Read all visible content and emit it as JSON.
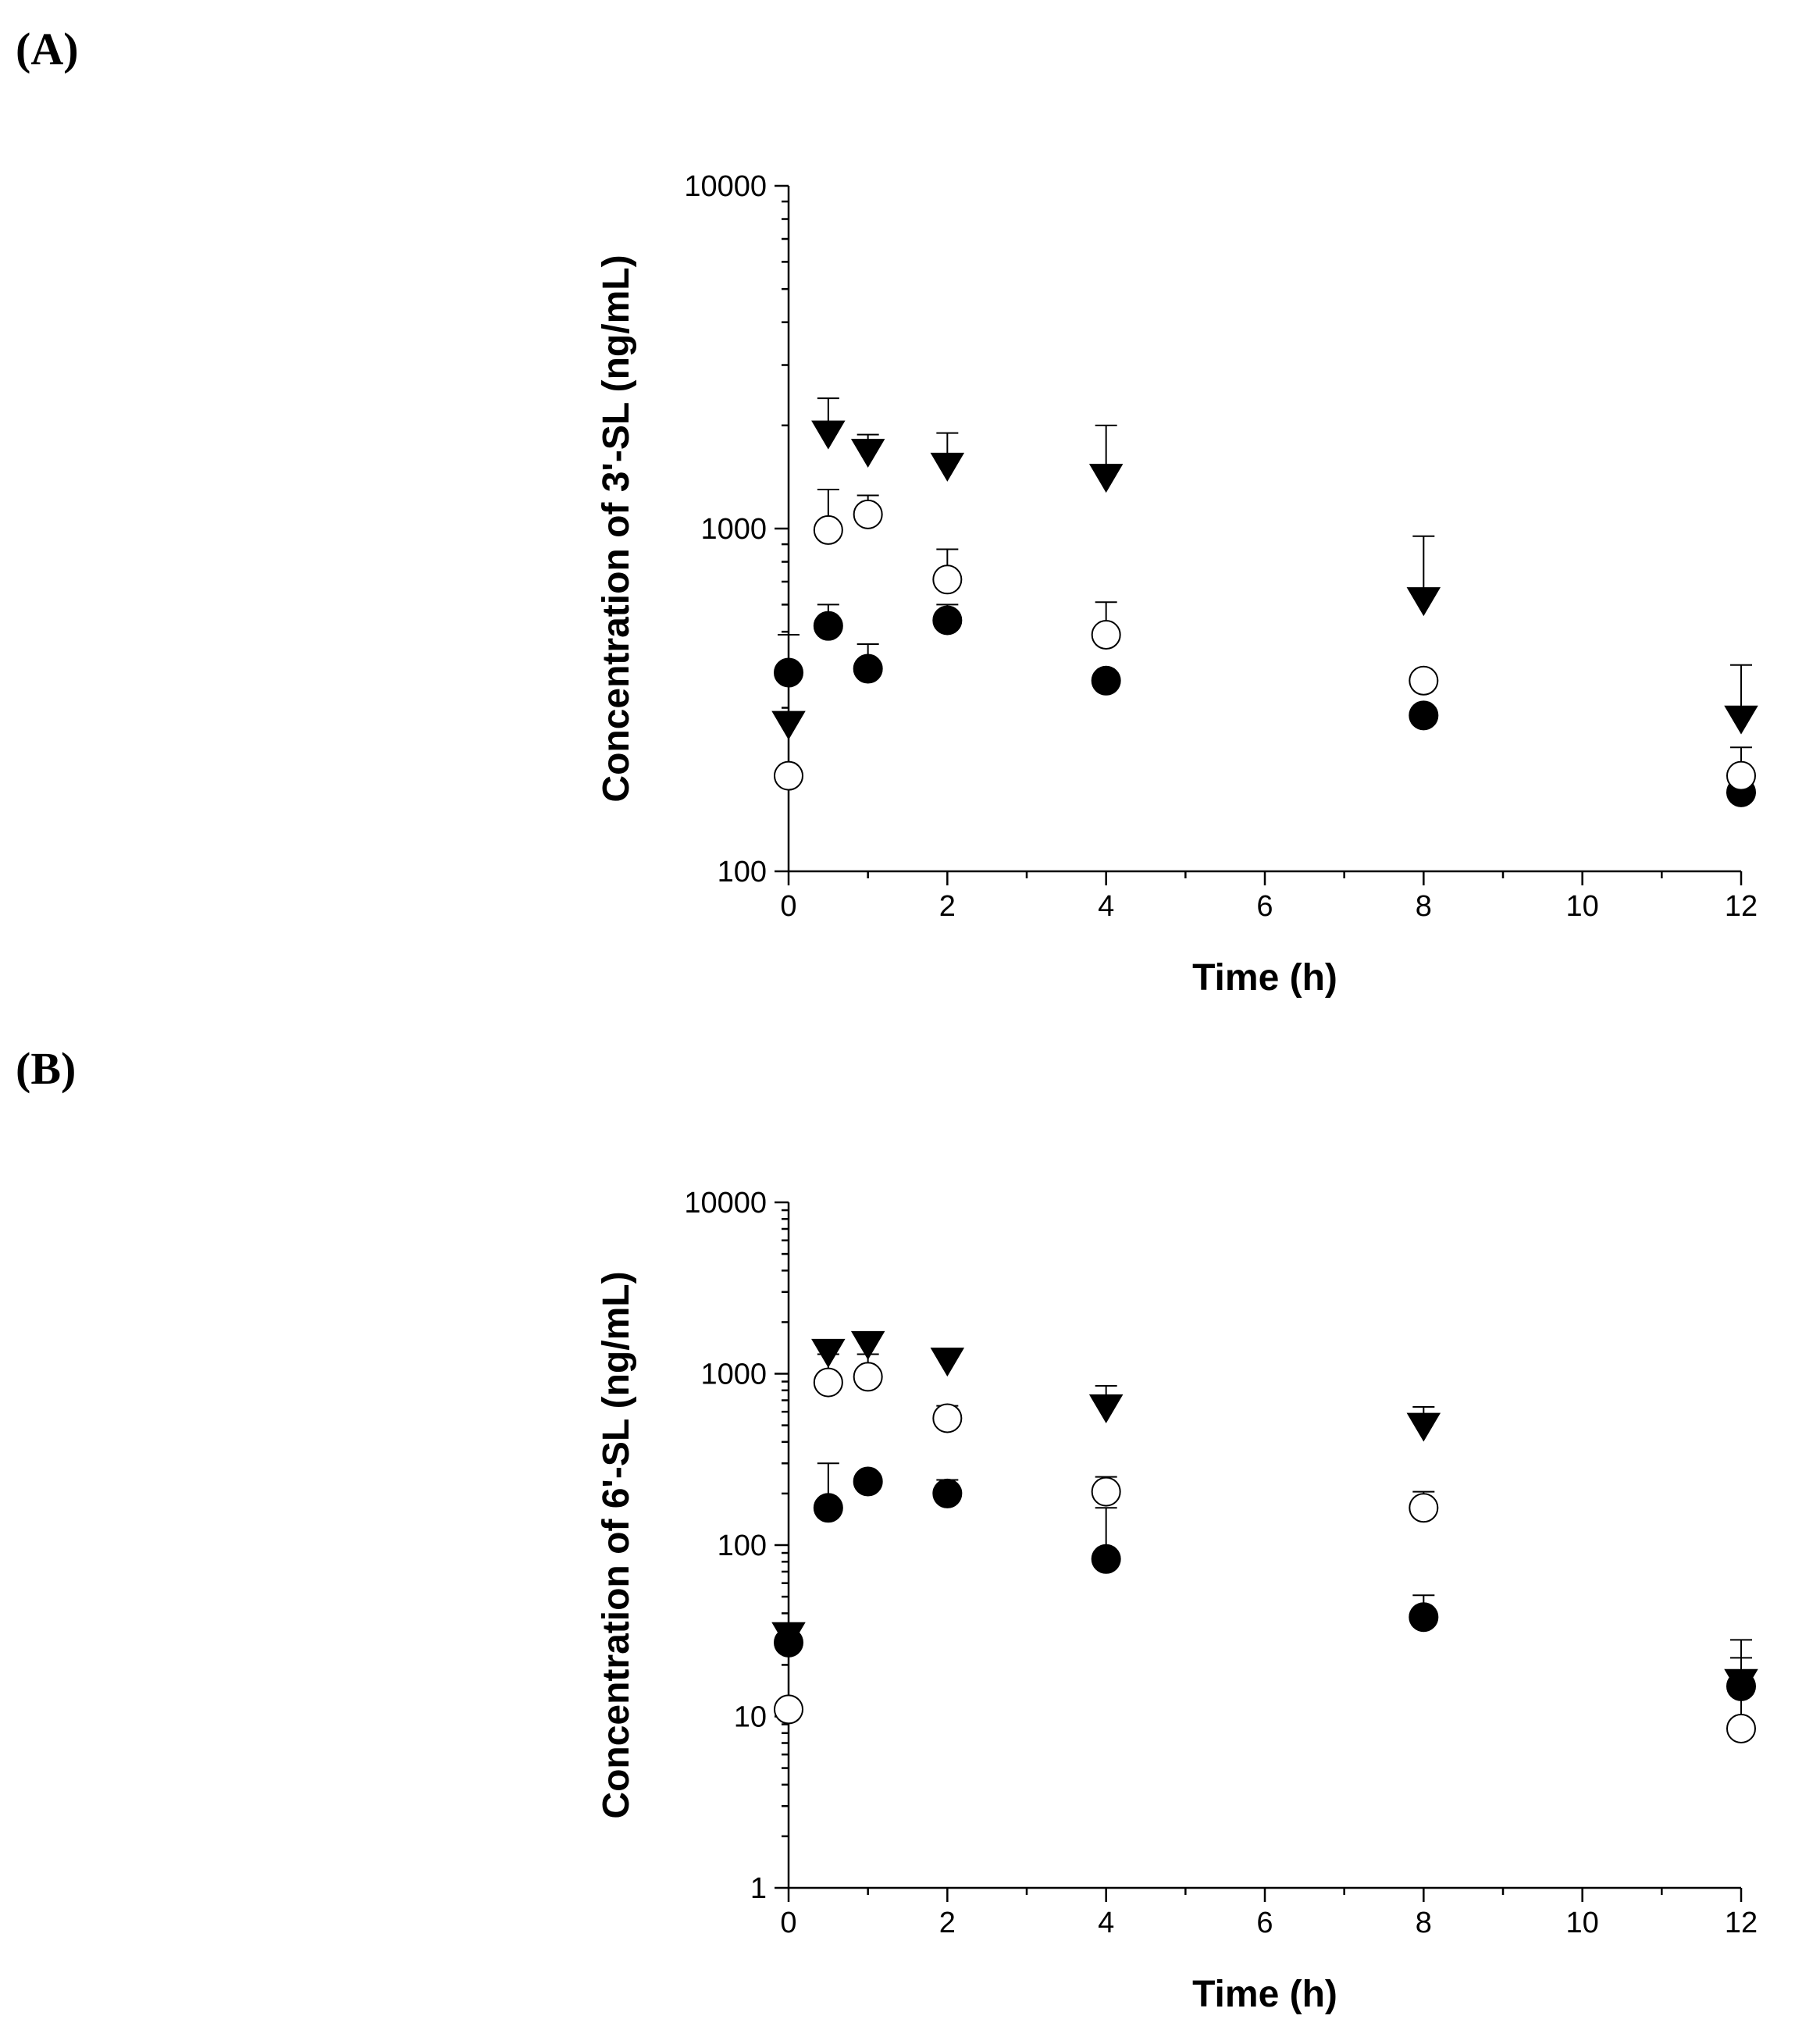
{
  "panels": [
    {
      "label": "(A)"
    },
    {
      "label": "(B)"
    }
  ],
  "chart_data": [
    {
      "type": "scatter",
      "panel": "(A)",
      "title": "",
      "xlabel": "Time (h)",
      "ylabel": "Concentration of 3'-SL (ng/mL)",
      "xlim": [
        0,
        12
      ],
      "ylim": [
        100,
        10000
      ],
      "yscale": "log",
      "xticks": [
        0,
        2,
        4,
        6,
        8,
        10,
        12
      ],
      "yticks": [
        100,
        1000,
        10000
      ],
      "grid": false,
      "legend": "none",
      "series": [
        {
          "name": "filled-circle",
          "marker": "filled-circle",
          "x": [
            0,
            0.5,
            1,
            2,
            4,
            8,
            12
          ],
          "y": [
            380,
            520,
            390,
            540,
            360,
            285,
            170
          ],
          "err": [
            0,
            600,
            460,
            600,
            0,
            0,
            0
          ]
        },
        {
          "name": "open-circle",
          "marker": "open-circle",
          "x": [
            0,
            0.5,
            1,
            2,
            4,
            8,
            12
          ],
          "y": [
            190,
            990,
            1100,
            710,
            490,
            360,
            190
          ],
          "err": [
            0,
            1300,
            1250,
            870,
            610,
            0,
            230
          ]
        },
        {
          "name": "filled-triangle",
          "marker": "filled-triangle-down",
          "x": [
            0,
            0.5,
            1,
            2,
            4,
            8,
            12
          ],
          "y": [
            270,
            1900,
            1680,
            1530,
            1420,
            620,
            280
          ],
          "err": [
            490,
            2400,
            1880,
            1900,
            2000,
            950,
            400
          ]
        }
      ]
    },
    {
      "type": "scatter",
      "panel": "(B)",
      "title": "",
      "xlabel": "Time (h)",
      "ylabel": "Concentration of 6'-SL (ng/mL)",
      "xlim": [
        0,
        12
      ],
      "ylim": [
        1,
        10000
      ],
      "yscale": "log",
      "xticks": [
        0,
        2,
        4,
        6,
        8,
        10,
        12
      ],
      "yticks": [
        1,
        10,
        100,
        1000,
        10000
      ],
      "grid": false,
      "legend": "none",
      "series": [
        {
          "name": "filled-circle",
          "marker": "filled-circle",
          "x": [
            0,
            0.5,
            1,
            2,
            4,
            8,
            12
          ],
          "y": [
            27,
            165,
            235,
            200,
            83,
            38,
            15
          ],
          "err": [
            34,
            300,
            0,
            240,
            165,
            51,
            28
          ]
        },
        {
          "name": "open-circle",
          "marker": "open-circle",
          "x": [
            0,
            0.5,
            1,
            2,
            4,
            8,
            12
          ],
          "y": [
            11,
            890,
            960,
            550,
            205,
            165,
            8.5
          ],
          "err": [
            0,
            1300,
            1300,
            650,
            250,
            205,
            22
          ]
        },
        {
          "name": "filled-triangle",
          "marker": "filled-triangle-down",
          "x": [
            0,
            0.5,
            1,
            2,
            4,
            8,
            12
          ],
          "y": [
            30,
            1350,
            1500,
            1200,
            640,
            500,
            16
          ],
          "err": [
            35,
            1450,
            1600,
            0,
            850,
            640,
            0
          ]
        }
      ]
    }
  ]
}
